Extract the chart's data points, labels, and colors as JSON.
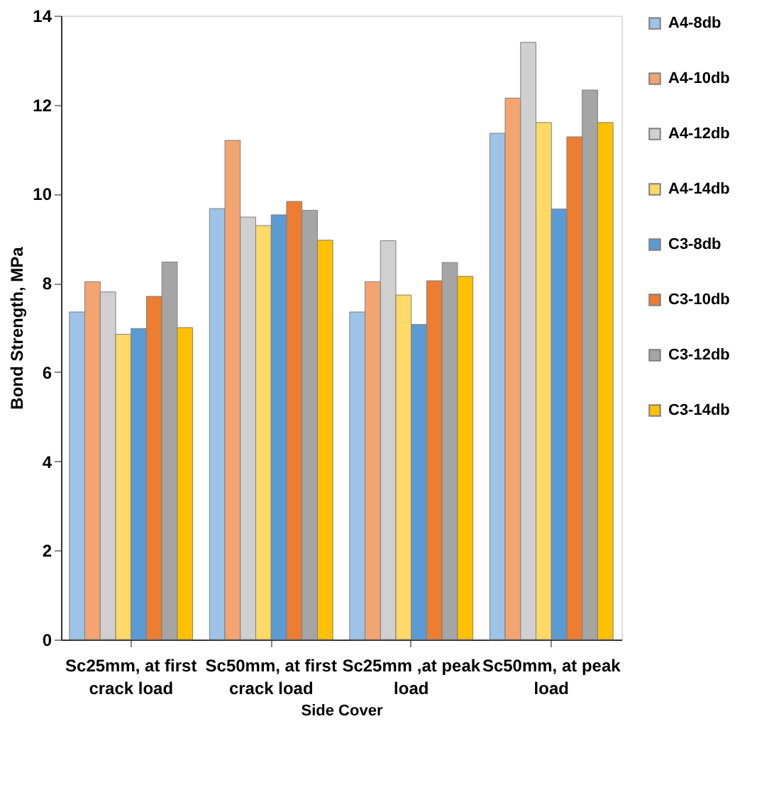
{
  "chart_data": {
    "type": "bar",
    "xlabel": "Side Cover",
    "ylabel": "Bond Strength, MPa",
    "categories": [
      "Sc25mm, at first crack load",
      "Sc50mm,  at first crack load",
      "Sc25mm ,at peak load",
      "Sc50mm, at peak load"
    ],
    "ylim": [
      0,
      14
    ],
    "yticks": [
      0,
      2,
      4,
      6,
      8,
      10,
      12,
      14
    ],
    "grid": false,
    "legend": "right",
    "series": [
      {
        "name": "A4-8db",
        "color": "#9dc3e6",
        "values": [
          7.35,
          9.67,
          7.35,
          11.36
        ]
      },
      {
        "name": "A4-10db",
        "color": "#f4a470",
        "values": [
          8.03,
          11.2,
          8.03,
          12.15
        ]
      },
      {
        "name": "A4-12db",
        "color": "#d0d0d0",
        "values": [
          7.8,
          9.48,
          8.95,
          13.4
        ]
      },
      {
        "name": "A4-14db",
        "color": "#ffd966",
        "values": [
          6.85,
          9.29,
          7.73,
          11.6
        ]
      },
      {
        "name": "C3-8db",
        "color": "#5b9bd5",
        "values": [
          6.98,
          9.53,
          7.07,
          9.66
        ]
      },
      {
        "name": "C3-10db",
        "color": "#ed7d31",
        "values": [
          7.7,
          9.83,
          8.05,
          11.28
        ]
      },
      {
        "name": "C3-12db",
        "color": "#a5a5a5",
        "values": [
          8.47,
          9.63,
          8.46,
          12.33
        ]
      },
      {
        "name": "C3-14db",
        "color": "#ffc000",
        "values": [
          7.0,
          8.96,
          8.15,
          11.6
        ]
      }
    ]
  }
}
